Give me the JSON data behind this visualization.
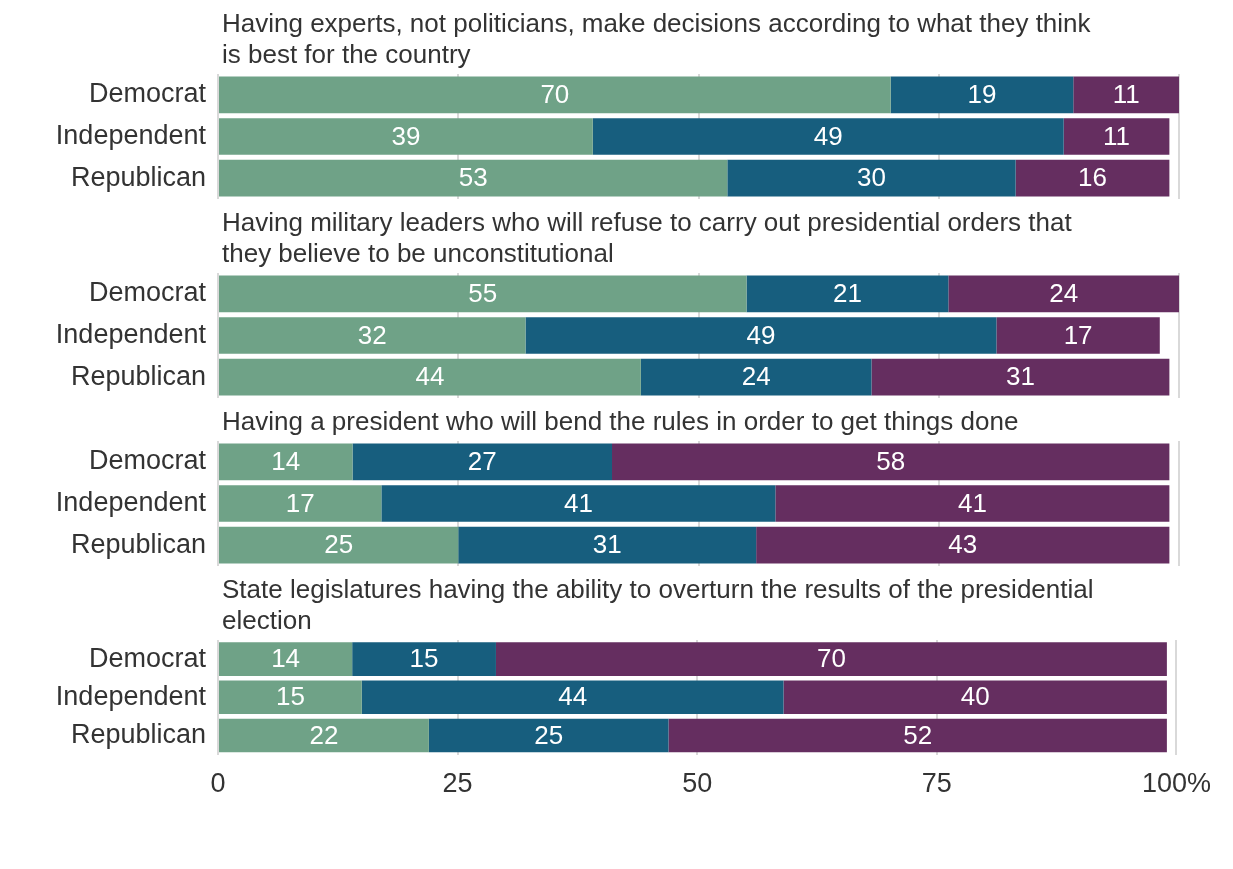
{
  "chart_data": [
    {
      "type": "bar",
      "orientation": "horizontal",
      "stacked": true,
      "title": "Having experts, not politicians, make decisions according to what they think is best for the country",
      "categories": [
        "Democrat",
        "Independent",
        "Republican"
      ],
      "series": [
        {
          "color": "#6fa287",
          "values": [
            70,
            39,
            53
          ]
        },
        {
          "color": "#175e7e",
          "values": [
            19,
            49,
            30
          ]
        },
        {
          "color": "#652e60",
          "values": [
            11,
            11,
            16
          ]
        }
      ],
      "xlim": [
        0,
        100
      ],
      "xticks": [
        0,
        25,
        50,
        75,
        100
      ],
      "grid": "x",
      "data_labels": true,
      "tick_labels": "y"
    },
    {
      "type": "bar",
      "orientation": "horizontal",
      "stacked": true,
      "title": "Having military leaders who will refuse to carry out presidential orders that they believe to be unconstitutional",
      "categories": [
        "Democrat",
        "Independent",
        "Republican"
      ],
      "series": [
        {
          "color": "#6fa287",
          "values": [
            55,
            32,
            44
          ]
        },
        {
          "color": "#175e7e",
          "values": [
            21,
            49,
            24
          ]
        },
        {
          "color": "#652e60",
          "values": [
            24,
            17,
            31
          ]
        }
      ],
      "xlim": [
        0,
        100
      ],
      "xticks": [
        0,
        25,
        50,
        75,
        100
      ],
      "grid": "x",
      "data_labels": true,
      "tick_labels": "y"
    },
    {
      "type": "bar",
      "orientation": "horizontal",
      "stacked": true,
      "title": "Having a president who will bend the rules in order to get things done",
      "categories": [
        "Democrat",
        "Independent",
        "Republican"
      ],
      "series": [
        {
          "color": "#6fa287",
          "values": [
            14,
            17,
            25
          ]
        },
        {
          "color": "#175e7e",
          "values": [
            27,
            41,
            31
          ]
        },
        {
          "color": "#652e60",
          "values": [
            58,
            41,
            43
          ]
        }
      ],
      "xlim": [
        0,
        100
      ],
      "xticks": [
        0,
        25,
        50,
        75,
        100
      ],
      "grid": "x",
      "data_labels": true,
      "tick_labels": "y"
    },
    {
      "type": "bar",
      "orientation": "horizontal",
      "stacked": true,
      "title": "State legislatures having the ability to overturn the results of the presidential election",
      "categories": [
        "Democrat",
        "Independent",
        "Republican"
      ],
      "series": [
        {
          "color": "#6fa287",
          "values": [
            14,
            15,
            22
          ]
        },
        {
          "color": "#175e7e",
          "values": [
            15,
            44,
            25
          ]
        },
        {
          "color": "#652e60",
          "values": [
            70,
            40,
            52
          ]
        }
      ],
      "xlim": [
        0,
        100
      ],
      "xticks": [
        0,
        25,
        50,
        75,
        {
          "value": 100,
          "label": "100%"
        }
      ],
      "grid": "x",
      "data_labels": true
    }
  ]
}
